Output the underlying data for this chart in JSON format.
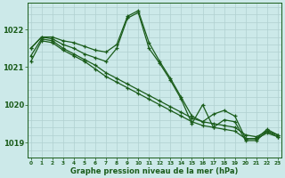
{
  "title": "Graphe pression niveau de la mer (hPa)",
  "background_color": "#cce9e9",
  "grid_color": "#b0d0d0",
  "line_color": "#1a5c1a",
  "ylim": [
    1018.6,
    1022.7
  ],
  "xlim": [
    -0.3,
    23.3
  ],
  "yticks": [
    1019,
    1020,
    1021,
    1022
  ],
  "xticks": [
    0,
    1,
    2,
    3,
    4,
    5,
    6,
    7,
    8,
    9,
    10,
    11,
    12,
    13,
    14,
    15,
    16,
    17,
    18,
    19,
    20,
    21,
    22,
    23
  ],
  "lines": [
    {
      "x": [
        0,
        1,
        2,
        3,
        4,
        5,
        6,
        7,
        8,
        9,
        10,
        11,
        12,
        13,
        14,
        15,
        16,
        17,
        18,
        19,
        20,
        21,
        22,
        23
      ],
      "y": [
        1021.5,
        1021.8,
        1021.8,
        1021.7,
        1021.65,
        1021.55,
        1021.45,
        1021.4,
        1021.6,
        1022.35,
        1022.5,
        1021.65,
        1021.15,
        1020.7,
        1020.2,
        1019.7,
        1019.55,
        1019.75,
        1019.85,
        1019.7,
        1019.1,
        1019.1,
        1019.35,
        1019.2
      ]
    },
    {
      "x": [
        0,
        1,
        2,
        3,
        4,
        5,
        6,
        7,
        8,
        9,
        10,
        11,
        12,
        13,
        14,
        15,
        16,
        17,
        18,
        19,
        20,
        21,
        22,
        23
      ],
      "y": [
        1021.3,
        1021.75,
        1021.7,
        1021.5,
        1021.35,
        1021.2,
        1021.05,
        1020.85,
        1020.7,
        1020.55,
        1020.4,
        1020.25,
        1020.1,
        1019.95,
        1019.8,
        1019.65,
        1019.55,
        1019.5,
        1019.45,
        1019.4,
        1019.2,
        1019.15,
        1019.3,
        1019.2
      ]
    },
    {
      "x": [
        0,
        1,
        2,
        3,
        4,
        5,
        6,
        7,
        8,
        9,
        10,
        11,
        12,
        13,
        14,
        15,
        16,
        17,
        18,
        19,
        20,
        21,
        22,
        23
      ],
      "y": [
        1021.15,
        1021.7,
        1021.65,
        1021.45,
        1021.3,
        1021.15,
        1020.95,
        1020.75,
        1020.6,
        1020.45,
        1020.3,
        1020.15,
        1020.0,
        1019.85,
        1019.7,
        1019.55,
        1019.45,
        1019.4,
        1019.35,
        1019.3,
        1019.1,
        1019.1,
        1019.25,
        1019.15
      ]
    },
    {
      "x": [
        0,
        1,
        2,
        3,
        4,
        5,
        6,
        7,
        8,
        9,
        10,
        11,
        12,
        13,
        14,
        15,
        16,
        17,
        18,
        19,
        20,
        21,
        22,
        23
      ],
      "y": [
        1021.5,
        1021.8,
        1021.75,
        1021.6,
        1021.5,
        1021.35,
        1021.25,
        1021.15,
        1021.5,
        1022.3,
        1022.45,
        1021.5,
        1021.1,
        1020.65,
        1020.15,
        1019.5,
        1020.0,
        1019.4,
        1019.6,
        1019.55,
        1019.05,
        1019.05,
        1019.3,
        1019.15
      ]
    }
  ]
}
